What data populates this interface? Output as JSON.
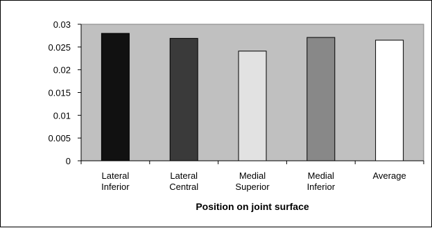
{
  "chart_data": {
    "type": "bar",
    "title": "",
    "xlabel": "Position on joint surface",
    "ylabel": "",
    "ylim": [
      0,
      0.03
    ],
    "yticks": [
      "0",
      "0.005",
      "0.01",
      "0.015",
      "0.02",
      "0.025",
      "0.03"
    ],
    "ytick_values": [
      0,
      0.005,
      0.01,
      0.015,
      0.02,
      0.025,
      0.03
    ],
    "categories": [
      [
        "Lateral",
        "Inferior"
      ],
      [
        "Lateral",
        "Central"
      ],
      [
        "Medial",
        "Superior"
      ],
      [
        "Medial",
        "Inferior"
      ],
      [
        "Average"
      ]
    ],
    "values": [
      0.028,
      0.0269,
      0.0241,
      0.0271,
      0.0265
    ],
    "bar_colors": [
      "#111111",
      "#3a3a3a",
      "#e2e2e2",
      "#888888",
      "#ffffff"
    ],
    "plot_background": "#c0c0c0",
    "grid": false,
    "legend": "none"
  }
}
